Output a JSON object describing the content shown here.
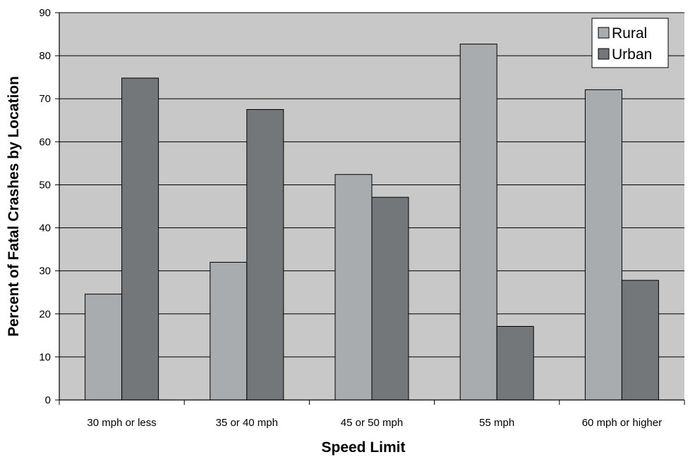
{
  "chart_data": {
    "type": "bar",
    "title": "",
    "xlabel": "Speed Limit",
    "ylabel": "Percent of Fatal Crashes by Location",
    "ylim": [
      0,
      90
    ],
    "yticks": [
      "0",
      "10",
      "20",
      "30",
      "40",
      "50",
      "60",
      "70",
      "80",
      "90"
    ],
    "categories": [
      "30 mph or less",
      "35 or 40 mph",
      "45 or 50 mph",
      "55 mph",
      "60 mph or higher"
    ],
    "series": [
      {
        "name": "Rural",
        "values": [
          24.6,
          32.0,
          52.4,
          82.7,
          72.1
        ],
        "color": "#a8acaf"
      },
      {
        "name": "Urban",
        "values": [
          74.8,
          67.5,
          47.1,
          17.1,
          27.8
        ],
        "color": "#74777a"
      }
    ],
    "grid": true,
    "plot_background": "#c8c8c8",
    "legend_position": "top-right"
  }
}
